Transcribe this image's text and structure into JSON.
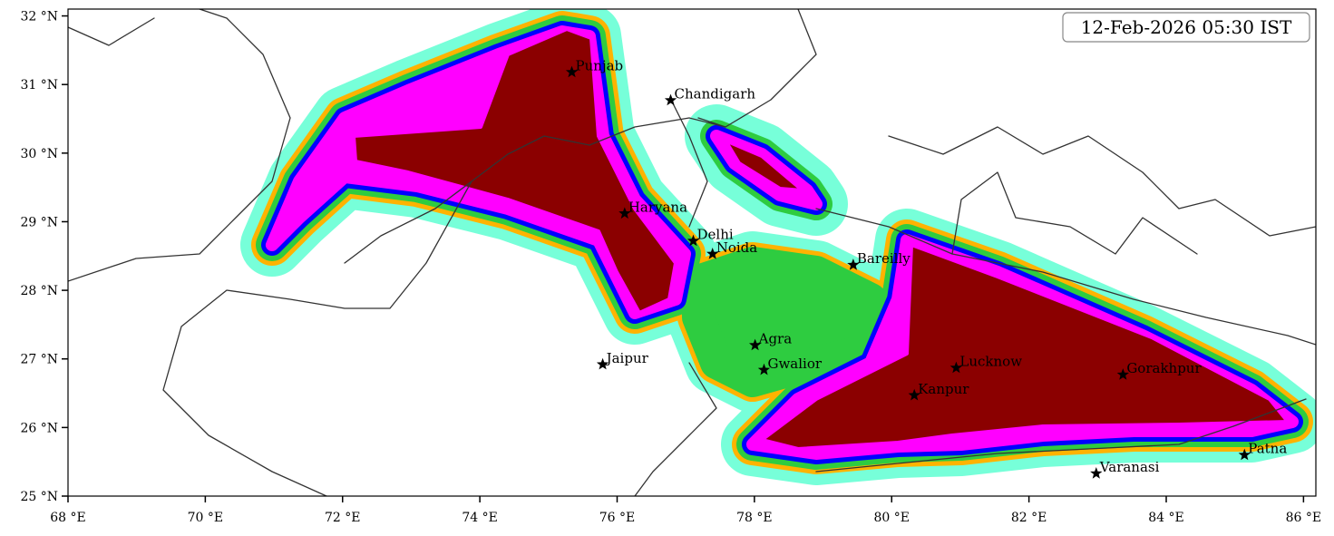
{
  "map": {
    "timestamp": "12-Feb-2026 05:30 IST",
    "xlim": [
      68,
      86.18
    ],
    "ylim": [
      25,
      32.1
    ],
    "xticks": [
      {
        "value": 68,
        "label": "68 °E"
      },
      {
        "value": 70,
        "label": "70 °E"
      },
      {
        "value": 72,
        "label": "72 °E"
      },
      {
        "value": 74,
        "label": "74 °E"
      },
      {
        "value": 76,
        "label": "76 °E"
      },
      {
        "value": 78,
        "label": "78 °E"
      },
      {
        "value": 80,
        "label": "80 °E"
      },
      {
        "value": 82,
        "label": "82 °E"
      },
      {
        "value": 84,
        "label": "84 °E"
      },
      {
        "value": 86,
        "label": "86 °E"
      }
    ],
    "yticks": [
      {
        "value": 25,
        "label": "25 °N"
      },
      {
        "value": 26,
        "label": "26 °N"
      },
      {
        "value": 27,
        "label": "27 °N"
      },
      {
        "value": 28,
        "label": "28 °N"
      },
      {
        "value": 29,
        "label": "29 °N"
      },
      {
        "value": 30,
        "label": "30 °N"
      },
      {
        "value": 31,
        "label": "31 °N"
      },
      {
        "value": 32,
        "label": "32 °N"
      }
    ],
    "cities": [
      {
        "name": "Punjab",
        "lon": 75.34,
        "lat": 31.18
      },
      {
        "name": "Chandigarh",
        "lon": 76.78,
        "lat": 30.77
      },
      {
        "name": "Haryana",
        "lon": 76.11,
        "lat": 29.12
      },
      {
        "name": "Delhi",
        "lon": 77.11,
        "lat": 28.72
      },
      {
        "name": "Noida",
        "lon": 77.39,
        "lat": 28.53
      },
      {
        "name": "Bareilly",
        "lon": 79.44,
        "lat": 28.37
      },
      {
        "name": "Agra",
        "lon": 78.01,
        "lat": 27.2
      },
      {
        "name": "Jaipur",
        "lon": 75.79,
        "lat": 26.92
      },
      {
        "name": "Gwalior",
        "lon": 78.14,
        "lat": 26.84
      },
      {
        "name": "Lucknow",
        "lon": 80.94,
        "lat": 26.87
      },
      {
        "name": "Kanpur",
        "lon": 80.33,
        "lat": 26.47
      },
      {
        "name": "Gorakhpur",
        "lon": 83.37,
        "lat": 26.77
      },
      {
        "name": "Varanasi",
        "lon": 82.98,
        "lat": 25.33
      },
      {
        "name": "Patna",
        "lon": 85.14,
        "lat": 25.6
      }
    ]
  }
}
